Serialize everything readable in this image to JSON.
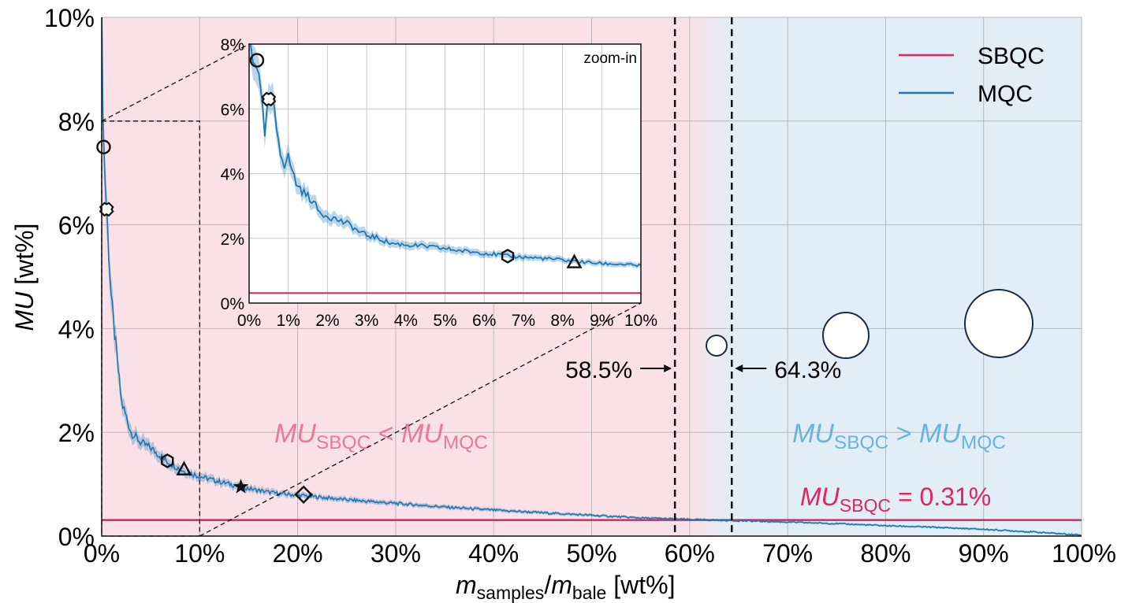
{
  "chart_data": {
    "type": "line",
    "xlabel_main": "m",
    "xlabel_sub1": "samples",
    "xlabel_mid": "/",
    "xlabel_m2": "m",
    "xlabel_sub2": "bale",
    "xlabel_unit": "[wt%]",
    "ylabel_italic": "MU",
    "ylabel_unit": " [wt%]",
    "xlim": [
      0,
      100
    ],
    "ylim": [
      0,
      10
    ],
    "x_ticks": [
      "0%",
      "10%",
      "20%",
      "30%",
      "40%",
      "50%",
      "60%",
      "70%",
      "80%",
      "90%",
      "100%"
    ],
    "y_ticks": [
      "0%",
      "2%",
      "4%",
      "6%",
      "8%",
      "10%"
    ],
    "grid": true,
    "legend_position": "top-right",
    "legend": [
      {
        "label": "SBQC",
        "color": "#e0245e"
      },
      {
        "label": "MQC",
        "color": "#1f77b4"
      }
    ],
    "series": [
      {
        "name": "SBQC",
        "color": "#e0245e",
        "constant": 0.31
      },
      {
        "name": "MQC",
        "color": "#1f77b4",
        "x": [
          0,
          0.2,
          0.5,
          1,
          2,
          3,
          4,
          5,
          6.7,
          8.4,
          10,
          12,
          14.2,
          16,
          18,
          20.6,
          25,
          30,
          35,
          40,
          45,
          50,
          55,
          58.5,
          60,
          64.3,
          70,
          75,
          80,
          85,
          90,
          95,
          100
        ],
        "y": [
          10,
          7.5,
          6.3,
          4.5,
          2.6,
          2.0,
          1.8,
          1.7,
          1.43,
          1.25,
          1.15,
          1.05,
          0.95,
          0.88,
          0.82,
          0.78,
          0.7,
          0.63,
          0.56,
          0.5,
          0.45,
          0.4,
          0.35,
          0.33,
          0.32,
          0.3,
          0.27,
          0.24,
          0.2,
          0.17,
          0.13,
          0.08,
          0.02
        ]
      }
    ],
    "markers": [
      {
        "shape": "circle",
        "x": 0.2,
        "y": 7.5
      },
      {
        "shape": "cross",
        "x": 0.5,
        "y": 6.3
      },
      {
        "shape": "hexagon",
        "x": 6.7,
        "y": 1.45
      },
      {
        "shape": "triangle",
        "x": 8.4,
        "y": 1.28
      },
      {
        "shape": "star",
        "x": 14.2,
        "y": 0.95
      },
      {
        "shape": "diamond",
        "x": 20.6,
        "y": 0.8
      }
    ],
    "region_colors": {
      "left": "#fae1e7",
      "right": "#e1edf7"
    },
    "thresholds": [
      {
        "x": 58.5,
        "label": "58.5%",
        "arrow": "right"
      },
      {
        "x": 64.3,
        "label": "64.3%",
        "arrow": "left"
      }
    ],
    "region_labels": {
      "left": {
        "a": "MU",
        "a_sub": "SBQC",
        "op": " < ",
        "b": "MU",
        "b_sub": "MQC",
        "color": "#e8799a"
      },
      "right": {
        "a": "MU",
        "a_sub": "SBQC",
        "op": " > ",
        "b": "MU",
        "b_sub": "MQC",
        "color": "#6ab4dc"
      },
      "sbqc_value": {
        "a": "MU",
        "a_sub": "SBQC",
        "rest": " = 0.31%",
        "color": "#e0245e"
      }
    },
    "inset": {
      "label": "zoom-in",
      "xlim": [
        0,
        10
      ],
      "ylim": [
        0,
        8
      ],
      "x_ticks": [
        "0%",
        "1%",
        "2%",
        "3%",
        "4%",
        "5%",
        "6%",
        "7%",
        "8%",
        "9%",
        "10%"
      ],
      "y_ticks": [
        "0%",
        "2%",
        "4%",
        "6%",
        "8%"
      ],
      "series_x": [
        0,
        0.1,
        0.2,
        0.3,
        0.4,
        0.5,
        0.6,
        0.7,
        0.8,
        0.9,
        1.0,
        1.2,
        1.4,
        1.6,
        1.8,
        2.0,
        2.2,
        2.4,
        2.6,
        2.8,
        3.0,
        3.3,
        3.6,
        4.0,
        4.5,
        5.0,
        5.5,
        6.0,
        6.6,
        7.0,
        7.5,
        8.0,
        8.4,
        9.0,
        9.5,
        10
      ],
      "series_y": [
        8.2,
        7.6,
        7.4,
        6.4,
        5.2,
        6.3,
        6.2,
        5.4,
        4.7,
        4.3,
        4.5,
        3.7,
        3.4,
        3.2,
        2.8,
        2.7,
        2.6,
        2.5,
        2.4,
        2.2,
        2.1,
        2.0,
        1.85,
        1.8,
        1.75,
        1.68,
        1.6,
        1.55,
        1.45,
        1.42,
        1.38,
        1.33,
        1.28,
        1.22,
        1.2,
        1.15
      ],
      "markers": [
        {
          "shape": "circle",
          "x": 0.2,
          "y": 7.5
        },
        {
          "shape": "cross",
          "x": 0.5,
          "y": 6.3
        },
        {
          "shape": "hexagon",
          "x": 6.6,
          "y": 1.45
        },
        {
          "shape": "triangle",
          "x": 8.3,
          "y": 1.25
        }
      ]
    }
  }
}
